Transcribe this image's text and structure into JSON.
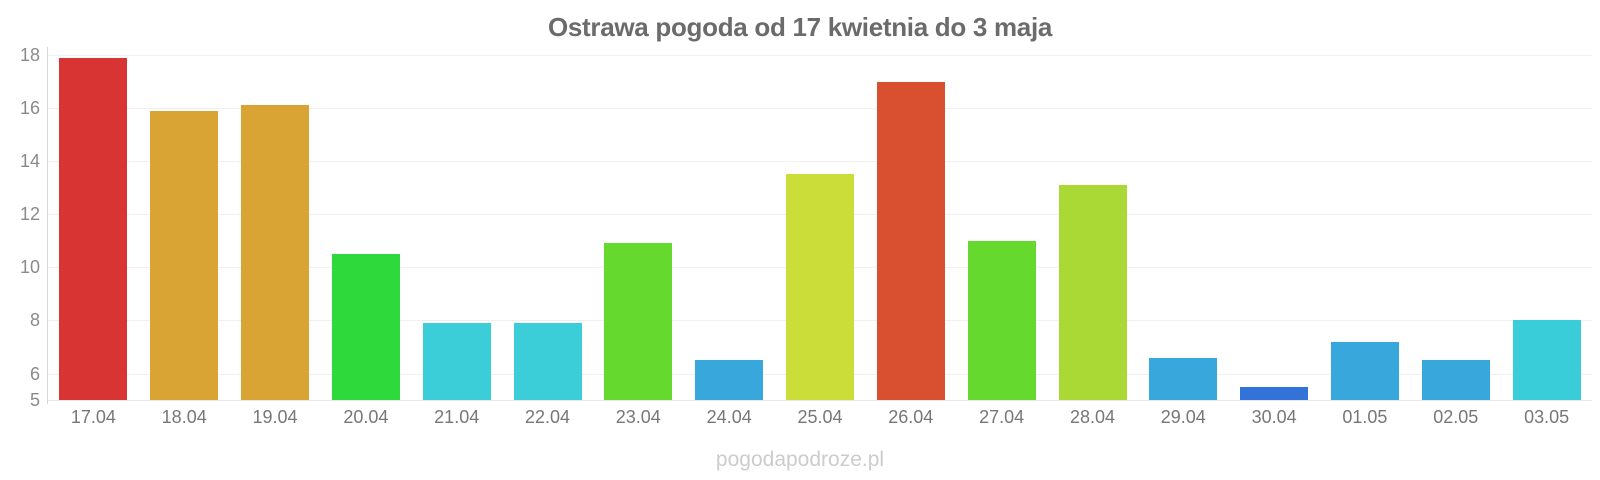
{
  "title": "Ostrawa pogoda od 17 kwietnia do 3 maja",
  "watermark": "pogodapodroze.pl",
  "chart_data": {
    "type": "bar",
    "title": "Ostrawa pogoda od 17 kwietnia do 3 maja",
    "categories": [
      "17.04",
      "18.04",
      "19.04",
      "20.04",
      "21.04",
      "22.04",
      "23.04",
      "24.04",
      "25.04",
      "26.04",
      "27.04",
      "28.04",
      "29.04",
      "30.04",
      "01.05",
      "02.05",
      "03.05"
    ],
    "values": [
      17.9,
      15.9,
      16.1,
      10.5,
      7.9,
      7.9,
      10.9,
      6.5,
      13.5,
      17.0,
      11.0,
      13.1,
      6.6,
      5.5,
      7.2,
      6.5,
      8.0
    ],
    "bar_colors": [
      "#d93434",
      "#d9a433",
      "#d9a433",
      "#2ed93c",
      "#3bced9",
      "#3bced9",
      "#66d92e",
      "#38a8dc",
      "#cbdd38",
      "#d8502f",
      "#66d92e",
      "#aad834",
      "#38a8dc",
      "#3272d9",
      "#38a8dc",
      "#38a8dc",
      "#38cdd8"
    ],
    "xlabel": "",
    "ylabel": "",
    "y_ticks": [
      18,
      16,
      14,
      12,
      10,
      8,
      6,
      5
    ],
    "ylim": [
      5,
      18.3
    ],
    "grid": true,
    "legend": false,
    "units": "°C (temperatura maksymalna dzienna, odczyt z wykresu)"
  },
  "colors": {
    "title": "#6b6b6b",
    "ytick_label": "#8a8a8a",
    "xtick_label": "#777777",
    "gridline": "#f0f0f0",
    "axis_line": "#d8d8d8",
    "watermark": "#cccccc",
    "background": "#ffffff"
  }
}
